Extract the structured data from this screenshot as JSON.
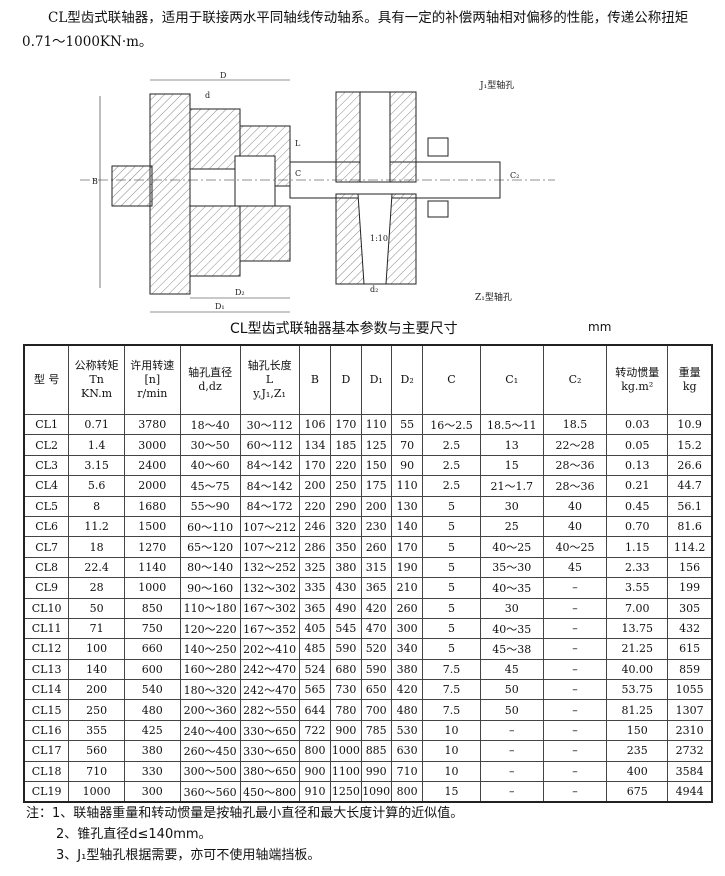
{
  "intro": "CL型齿式联轴器，适用于联接两水平同轴线传动轴系。具有一定的补偿两轴相对偏移的性能，传递公称扭矩0.71～1000KN·m。",
  "drawing": {
    "labels": {
      "D": "D",
      "d": "d",
      "L": "L",
      "C": "C",
      "B": "B",
      "D2": "D₂",
      "D1": "D₁",
      "dz": "d₂",
      "C2": "C₂",
      "taper": "1:10",
      "j1": "J₁型轴孔",
      "z1": "Z₁型轴孔"
    }
  },
  "table_title": "CL型齿式联轴器基本参数与主要尺寸",
  "unit": "mm",
  "headers": [
    [
      "型 号"
    ],
    [
      "公称转矩",
      "Tn",
      "KN.m"
    ],
    [
      "许用转速",
      "[n]",
      "r/min"
    ],
    [
      "轴孔直径",
      "d,dz"
    ],
    [
      "轴孔长度",
      "L",
      "y,J₁,Z₁"
    ],
    [
      "B"
    ],
    [
      "D"
    ],
    [
      "D₁"
    ],
    [
      "D₂"
    ],
    [
      "C"
    ],
    [
      "C₁"
    ],
    [
      "C₂"
    ],
    [
      "转动惯量",
      "kg.m²"
    ],
    [
      "重量",
      "kg"
    ]
  ],
  "rows": [
    [
      "CL1",
      "0.71",
      "3780",
      "18～40",
      "30～112",
      "106",
      "170",
      "110",
      "55",
      "16～2.5",
      "18.5～11",
      "18.5",
      "0.03",
      "10.9"
    ],
    [
      "CL2",
      "1.4",
      "3000",
      "30～50",
      "60～112",
      "134",
      "185",
      "125",
      "70",
      "2.5",
      "13",
      "22～28",
      "0.05",
      "15.2"
    ],
    [
      "CL3",
      "3.15",
      "2400",
      "40～60",
      "84～142",
      "170",
      "220",
      "150",
      "90",
      "2.5",
      "15",
      "28～36",
      "0.13",
      "26.6"
    ],
    [
      "CL4",
      "5.6",
      "2000",
      "45～75",
      "84～142",
      "200",
      "250",
      "175",
      "110",
      "2.5",
      "21～1.7",
      "28～36",
      "0.21",
      "44.7"
    ],
    [
      "CL5",
      "8",
      "1680",
      "55～90",
      "84～172",
      "220",
      "290",
      "200",
      "130",
      "5",
      "30",
      "40",
      "0.45",
      "56.1"
    ],
    [
      "CL6",
      "11.2",
      "1500",
      "60～110",
      "107～212",
      "246",
      "320",
      "230",
      "140",
      "5",
      "25",
      "40",
      "0.70",
      "81.6"
    ],
    [
      "CL7",
      "18",
      "1270",
      "65～120",
      "107～212",
      "286",
      "350",
      "260",
      "170",
      "5",
      "40～25",
      "40～25",
      "1.15",
      "114.2"
    ],
    [
      "CL8",
      "22.4",
      "1140",
      "80～140",
      "132～252",
      "325",
      "380",
      "315",
      "190",
      "5",
      "35～30",
      "45",
      "2.33",
      "156"
    ],
    [
      "CL9",
      "28",
      "1000",
      "90～160",
      "132～302",
      "335",
      "430",
      "365",
      "210",
      "5",
      "40～35",
      "–",
      "3.55",
      "199"
    ],
    [
      "CL10",
      "50",
      "850",
      "110～180",
      "167～302",
      "365",
      "490",
      "420",
      "260",
      "5",
      "30",
      "–",
      "7.00",
      "305"
    ],
    [
      "CL11",
      "71",
      "750",
      "120～220",
      "167～352",
      "405",
      "545",
      "470",
      "300",
      "5",
      "40～35",
      "–",
      "13.75",
      "432"
    ],
    [
      "CL12",
      "100",
      "660",
      "140～250",
      "202～410",
      "485",
      "590",
      "520",
      "340",
      "5",
      "45～38",
      "–",
      "21.25",
      "615"
    ],
    [
      "CL13",
      "140",
      "600",
      "160～280",
      "242～470",
      "524",
      "680",
      "590",
      "380",
      "7.5",
      "45",
      "–",
      "40.00",
      "859"
    ],
    [
      "CL14",
      "200",
      "540",
      "180～320",
      "242～470",
      "565",
      "730",
      "650",
      "420",
      "7.5",
      "50",
      "–",
      "53.75",
      "1055"
    ],
    [
      "CL15",
      "250",
      "480",
      "200～360",
      "282～550",
      "644",
      "780",
      "700",
      "480",
      "7.5",
      "50",
      "–",
      "81.25",
      "1307"
    ],
    [
      "CL16",
      "355",
      "425",
      "240～400",
      "330～650",
      "722",
      "900",
      "785",
      "530",
      "10",
      "–",
      "–",
      "150",
      "2310"
    ],
    [
      "CL17",
      "560",
      "380",
      "260～450",
      "330～650",
      "800",
      "1000",
      "885",
      "630",
      "10",
      "–",
      "–",
      "235",
      "2732"
    ],
    [
      "CL18",
      "710",
      "330",
      "300～500",
      "380～650",
      "900",
      "1100",
      "990",
      "710",
      "10",
      "–",
      "–",
      "400",
      "3584"
    ],
    [
      "CL19",
      "1000",
      "300",
      "360～560",
      "450～800",
      "910",
      "1250",
      "1090",
      "800",
      "15",
      "–",
      "–",
      "675",
      "4944"
    ]
  ],
  "notes": [
    "注：1、联轴器重量和转动惯量是按轴孔最小直径和最大长度计算的近似值。",
    "2、锥孔直径d≤140mm。",
    "3、J₁型轴孔根据需要，亦可不使用轴端挡板。"
  ]
}
